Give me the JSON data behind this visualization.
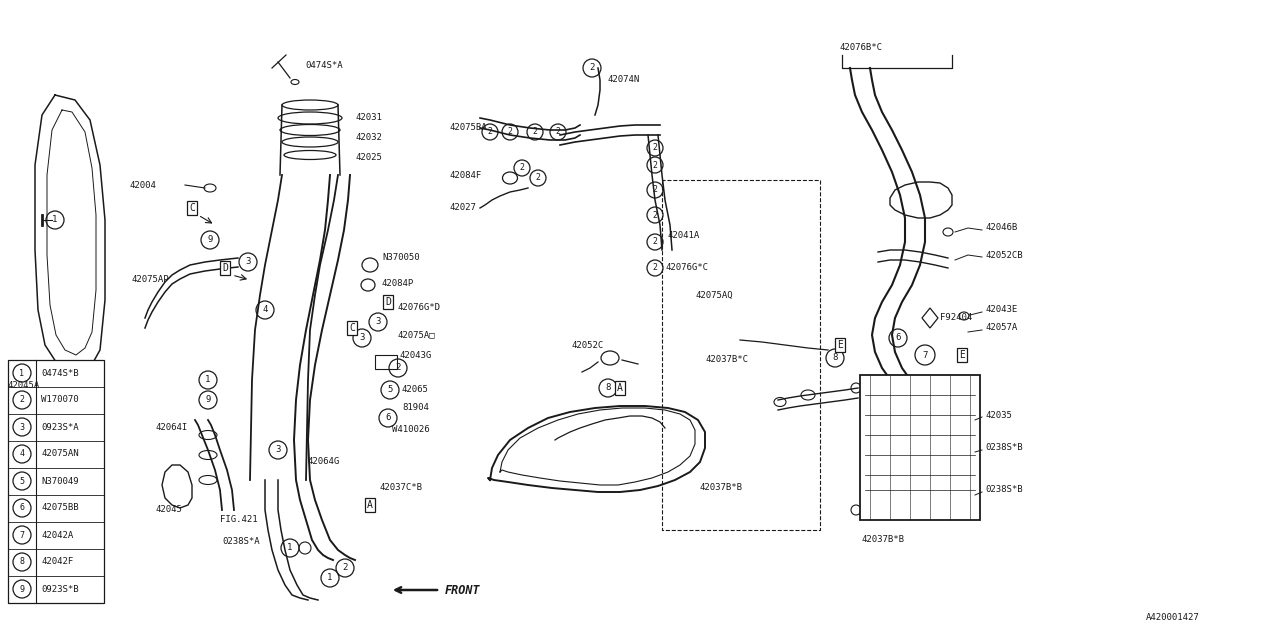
{
  "background_color": "#ffffff",
  "line_color": "#1a1a1a",
  "text_color": "#1a1a1a",
  "fig_width": 12.8,
  "fig_height": 6.4,
  "dpi": 100,
  "legend_items": [
    [
      "1",
      "0474S*B"
    ],
    [
      "2",
      "W170070"
    ],
    [
      "3",
      "0923S*A"
    ],
    [
      "4",
      "42075AN"
    ],
    [
      "5",
      "N370049"
    ],
    [
      "6",
      "42075BB"
    ],
    [
      "7",
      "42042A"
    ],
    [
      "8",
      "42042F"
    ],
    [
      "9",
      "0923S*B"
    ]
  ]
}
